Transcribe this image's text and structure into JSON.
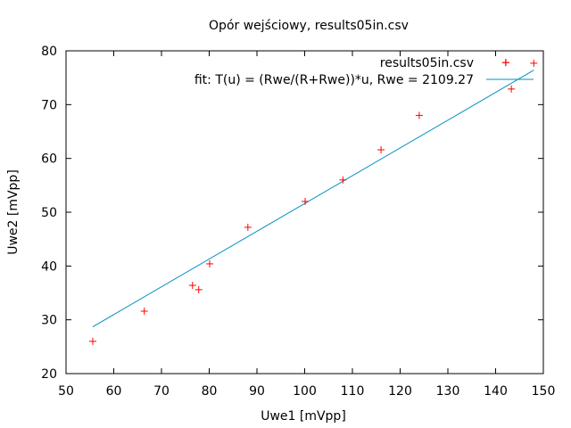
{
  "chart_data": {
    "type": "scatter",
    "title": "Opór wejściowy, results05in.csv",
    "xlabel": "Uwe1 [mVpp]",
    "ylabel": "Uwe2 [mVpp]",
    "xlim": [
      50,
      150
    ],
    "ylim": [
      20,
      80
    ],
    "xticks": [
      50,
      60,
      70,
      80,
      90,
      100,
      110,
      120,
      130,
      140,
      150
    ],
    "yticks": [
      20,
      30,
      40,
      50,
      60,
      70,
      80
    ],
    "grid": false,
    "legend_position": "top-right",
    "series": [
      {
        "name": "results05in.csv",
        "type": "scatter",
        "marker": "+",
        "color": "#ff0000",
        "points": [
          {
            "x": 55.6,
            "y": 26.0
          },
          {
            "x": 66.4,
            "y": 31.6
          },
          {
            "x": 76.5,
            "y": 36.4
          },
          {
            "x": 77.8,
            "y": 35.6
          },
          {
            "x": 80.1,
            "y": 40.4
          },
          {
            "x": 88.1,
            "y": 47.2
          },
          {
            "x": 100.1,
            "y": 52.0
          },
          {
            "x": 108.0,
            "y": 56.0
          },
          {
            "x": 116.0,
            "y": 61.6
          },
          {
            "x": 124.0,
            "y": 68.0
          },
          {
            "x": 142.1,
            "y": 77.8
          },
          {
            "x": 143.3,
            "y": 72.9
          },
          {
            "x": 148.0,
            "y": 77.7
          }
        ]
      },
      {
        "name": "fit: T(u) = (Rwe/(R+Rwe))*u, Rwe = 2109.27",
        "type": "line",
        "color": "#0090c0",
        "points": [
          {
            "x": 55.6,
            "y": 28.7
          },
          {
            "x": 148.0,
            "y": 76.4
          }
        ]
      }
    ]
  }
}
